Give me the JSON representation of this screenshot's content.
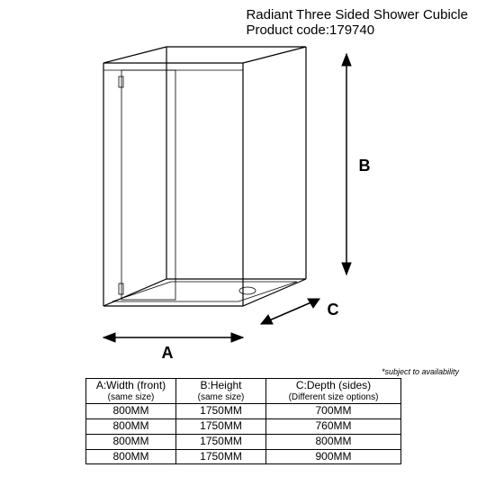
{
  "header": {
    "title": "Radiant Three Sided Shower Cubicle",
    "code_label": "Product code:",
    "code_value": "179740"
  },
  "diagram": {
    "label_A": "A",
    "label_B": "B",
    "label_C": "C",
    "stroke": "#000000",
    "background": "#ffffff"
  },
  "footnote": "*subject to availability",
  "table": {
    "columns": [
      {
        "main": "A:Width (front)",
        "sub": "(same size)"
      },
      {
        "main": "B:Height",
        "sub": "(same size)"
      },
      {
        "main": "C:Depth (sides)",
        "sub": "(Different size options)"
      }
    ],
    "rows": [
      [
        "800MM",
        "1750MM",
        "700MM"
      ],
      [
        "800MM",
        "1750MM",
        "760MM"
      ],
      [
        "800MM",
        "1750MM",
        "800MM"
      ],
      [
        "800MM",
        "1750MM",
        "900MM"
      ]
    ]
  }
}
